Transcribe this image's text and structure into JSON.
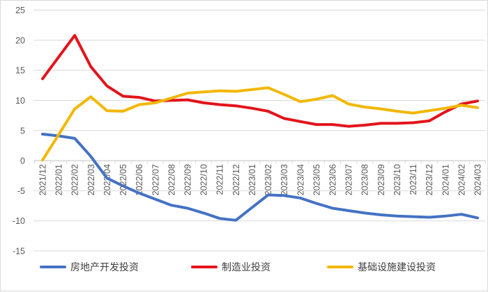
{
  "chart_data": {
    "type": "line",
    "title": "",
    "xlabel": "",
    "ylabel": "",
    "ylim": [
      -15,
      25
    ],
    "yticks": [
      25,
      20,
      15,
      10,
      5,
      0,
      -5,
      -10,
      -15
    ],
    "grid": "horizontal",
    "legend_position": "bottom",
    "categories": [
      "2021/12",
      "2022/01",
      "2022/02",
      "2022/03",
      "2022/04",
      "2022/05",
      "2022/06",
      "2022/07",
      "2022/08",
      "2022/09",
      "2022/10",
      "2022/11",
      "2022/12",
      "2023/01",
      "2023/02",
      "2023/03",
      "2023/04",
      "2023/05",
      "2023/06",
      "2023/07",
      "2023/08",
      "2023/09",
      "2023/10",
      "2023/11",
      "2023/12",
      "2024/01",
      "2024/02",
      "2024/03"
    ],
    "series": [
      {
        "name": "房地产开发投资",
        "color": "#4472C4",
        "values": [
          4.4,
          4.1,
          3.7,
          0.7,
          -2.9,
          -4.2,
          -5.4,
          -6.4,
          -7.4,
          -7.9,
          -8.7,
          -9.6,
          -9.9,
          -7.8,
          -5.7,
          -5.8,
          -6.2,
          -7.1,
          -7.9,
          -8.3,
          -8.7,
          -9.0,
          -9.2,
          -9.3,
          -9.4,
          -9.2,
          -8.9,
          -9.5
        ]
      },
      {
        "name": "制造业投资",
        "color": "#E3141B",
        "values": [
          13.6,
          17.2,
          20.8,
          15.6,
          12.4,
          10.7,
          10.5,
          9.9,
          10.0,
          10.1,
          9.6,
          9.3,
          9.1,
          8.7,
          8.2,
          7.0,
          6.5,
          6.0,
          6.0,
          5.7,
          5.9,
          6.2,
          6.2,
          6.3,
          6.6,
          8.1,
          9.4,
          9.9
        ]
      },
      {
        "name": "基础设施建设投资",
        "color": "#F2B705",
        "values": [
          0.1,
          4.3,
          8.6,
          10.6,
          8.3,
          8.2,
          9.3,
          9.6,
          10.4,
          11.2,
          11.4,
          11.6,
          11.5,
          11.8,
          12.1,
          11.0,
          9.8,
          10.2,
          10.8,
          9.4,
          8.9,
          8.6,
          8.2,
          7.9,
          8.3,
          8.7,
          9.2,
          8.8
        ]
      }
    ]
  }
}
